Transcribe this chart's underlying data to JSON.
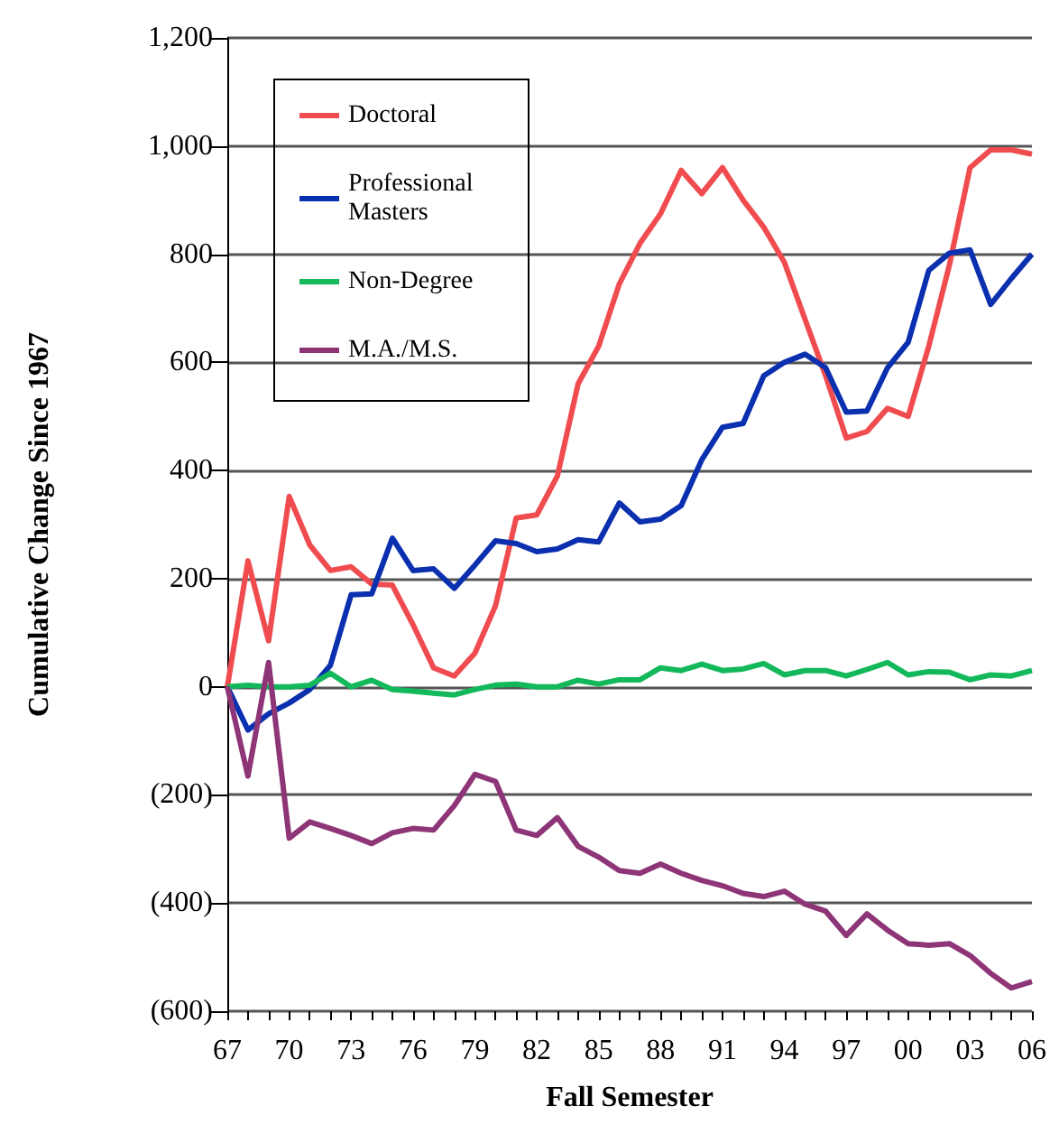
{
  "chart_data": {
    "type": "line",
    "xlabel": "Fall Semester",
    "ylabel": "Cumulative Change Since 1967",
    "categories": [
      "67",
      null,
      null,
      "70",
      null,
      null,
      "73",
      null,
      null,
      "76",
      null,
      null,
      "79",
      null,
      null,
      "82",
      null,
      null,
      "85",
      null,
      null,
      "88",
      null,
      null,
      "91",
      null,
      null,
      "94",
      null,
      null,
      "97",
      null,
      null,
      "00",
      null,
      null,
      "03",
      null,
      null,
      "06"
    ],
    "series": [
      {
        "name": "Doctoral",
        "color": "#f04c50",
        "values": [
          0,
          233,
          85,
          352,
          262,
          215,
          222,
          190,
          188,
          115,
          35,
          20,
          62,
          150,
          312,
          318,
          390,
          560,
          630,
          745,
          820,
          875,
          955,
          912,
          960,
          900,
          850,
          785,
          680,
          575,
          460,
          472,
          515,
          500,
          630,
          780,
          960,
          993,
          993,
          985
        ]
      },
      {
        "name": "Professional Masters",
        "color": "#0a2faf",
        "values": [
          0,
          -80,
          -50,
          -30,
          -5,
          40,
          170,
          172,
          275,
          215,
          218,
          182,
          225,
          270,
          265,
          250,
          255,
          272,
          268,
          340,
          305,
          310,
          335,
          420,
          480,
          487,
          575,
          600,
          615,
          590,
          508,
          510,
          590,
          637,
          770,
          802,
          808,
          707,
          755,
          800
        ]
      },
      {
        "name": "Non-Degree",
        "color": "#12b85a",
        "values": [
          0,
          3,
          0,
          0,
          3,
          25,
          0,
          12,
          -5,
          -8,
          -12,
          -15,
          -5,
          3,
          5,
          0,
          0,
          12,
          5,
          13,
          13,
          35,
          30,
          42,
          30,
          33,
          43,
          22,
          30,
          30,
          20,
          32,
          45,
          22,
          28,
          27,
          13,
          22,
          20,
          30
        ]
      },
      {
        "name": "M.A./M.S.",
        "color": "#8e3577",
        "values": [
          0,
          -165,
          45,
          -280,
          -250,
          -262,
          -275,
          -290,
          -270,
          -262,
          -265,
          -220,
          -162,
          -175,
          -265,
          -275,
          -242,
          -295,
          -315,
          -340,
          -345,
          -328,
          -345,
          -358,
          -368,
          -382,
          -388,
          -378,
          -402,
          -415,
          -460,
          -420,
          -450,
          -475,
          -478,
          -475,
          -497,
          -530,
          -557,
          -545
        ]
      }
    ],
    "ylim": [
      -600,
      1200
    ],
    "yticks": [
      {
        "value": -600,
        "label": "(600)"
      },
      {
        "value": -400,
        "label": "(400)"
      },
      {
        "value": -200,
        "label": "(200)"
      },
      0,
      200,
      400,
      600,
      800,
      {
        "value": 1000,
        "label": "1,000"
      },
      {
        "value": 1200,
        "label": "1,200"
      }
    ],
    "grid": "y",
    "legend": "top left",
    "marker": "none",
    "line_style": "solid"
  }
}
